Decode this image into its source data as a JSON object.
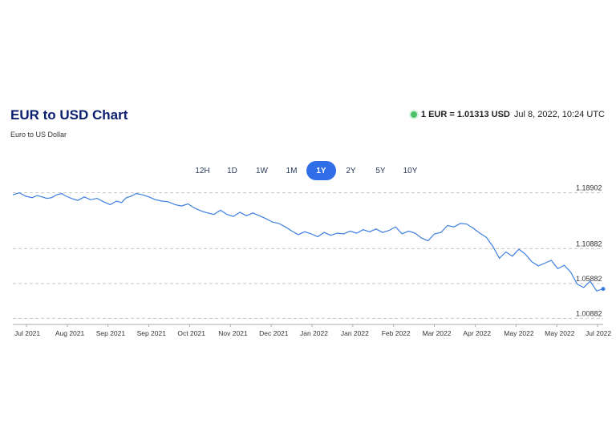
{
  "header": {
    "title": "EUR to USD Chart",
    "subtitle": "Euro to US Dollar",
    "rate_label": "1 EUR = 1.01313 USD",
    "timestamp": "Jul 8, 2022, 10:24 UTC",
    "live_color": "#4cc36a"
  },
  "ranges": [
    {
      "label": "12H",
      "active": false
    },
    {
      "label": "1D",
      "active": false
    },
    {
      "label": "1W",
      "active": false
    },
    {
      "label": "1M",
      "active": false
    },
    {
      "label": "1Y",
      "active": true
    },
    {
      "label": "2Y",
      "active": false
    },
    {
      "label": "5Y",
      "active": false
    },
    {
      "label": "10Y",
      "active": false
    }
  ],
  "chart_data": {
    "type": "line",
    "title": "",
    "xlabel": "",
    "ylabel": "",
    "ylim": [
      1.0,
      1.192
    ],
    "yticks": [
      1.18902,
      1.10882,
      1.05882,
      1.00882
    ],
    "ytick_labels": [
      "1.18902",
      "1.10882",
      "1.05882",
      "1.00882"
    ],
    "grid": "horizontal dashed",
    "line_color": "#3d7fe0",
    "xtick_labels": [
      "Jul 2021",
      "Aug 2021",
      "Sep 2021",
      "Sep 2021",
      "Oct 2021",
      "Nov 2021",
      "Dec 2021",
      "Jan 2022",
      "Jan 2022",
      "Feb 2022",
      "Mar 2022",
      "Apr 2022",
      "May 2022",
      "May 2022",
      "Jul 2022"
    ],
    "series": [
      {
        "x": [
          0,
          4,
          8,
          12,
          15,
          18,
          21,
          24,
          27,
          30,
          33,
          36,
          40,
          44,
          48,
          52,
          56,
          60,
          64,
          67,
          70,
          73,
          76,
          80,
          84,
          88,
          92,
          96,
          100,
          104,
          108,
          112,
          116,
          120,
          124,
          128,
          132,
          136,
          140,
          144,
          148,
          152,
          156,
          160,
          164,
          168,
          172,
          176,
          180,
          184,
          188,
          192,
          196,
          200,
          204,
          208,
          212,
          216,
          220,
          224,
          228,
          232,
          236,
          240,
          244,
          248,
          252,
          256,
          260,
          264,
          268,
          272,
          276,
          280,
          284,
          288,
          292,
          296,
          300,
          304,
          308,
          312,
          316,
          320,
          324,
          328,
          332,
          336,
          340,
          344,
          348,
          352,
          356,
          360,
          364
        ],
        "values": [
          1.186,
          1.189,
          1.184,
          1.182,
          1.185,
          1.183,
          1.181,
          1.182,
          1.186,
          1.188,
          1.184,
          1.181,
          1.178,
          1.183,
          1.179,
          1.181,
          1.176,
          1.172,
          1.177,
          1.175,
          1.182,
          1.184,
          1.188,
          1.186,
          1.183,
          1.179,
          1.177,
          1.176,
          1.172,
          1.17,
          1.173,
          1.167,
          1.163,
          1.16,
          1.158,
          1.164,
          1.158,
          1.155,
          1.161,
          1.156,
          1.16,
          1.156,
          1.152,
          1.147,
          1.145,
          1.14,
          1.134,
          1.129,
          1.133,
          1.13,
          1.126,
          1.132,
          1.128,
          1.131,
          1.13,
          1.134,
          1.131,
          1.136,
          1.133,
          1.137,
          1.132,
          1.135,
          1.14,
          1.13,
          1.134,
          1.131,
          1.124,
          1.12,
          1.13,
          1.132,
          1.142,
          1.14,
          1.145,
          1.144,
          1.138,
          1.131,
          1.125,
          1.112,
          1.095,
          1.104,
          1.098,
          1.108,
          1.101,
          1.09,
          1.084,
          1.088,
          1.092,
          1.08,
          1.085,
          1.075,
          1.058,
          1.053,
          1.062,
          1.048,
          1.051
        ]
      }
    ]
  }
}
